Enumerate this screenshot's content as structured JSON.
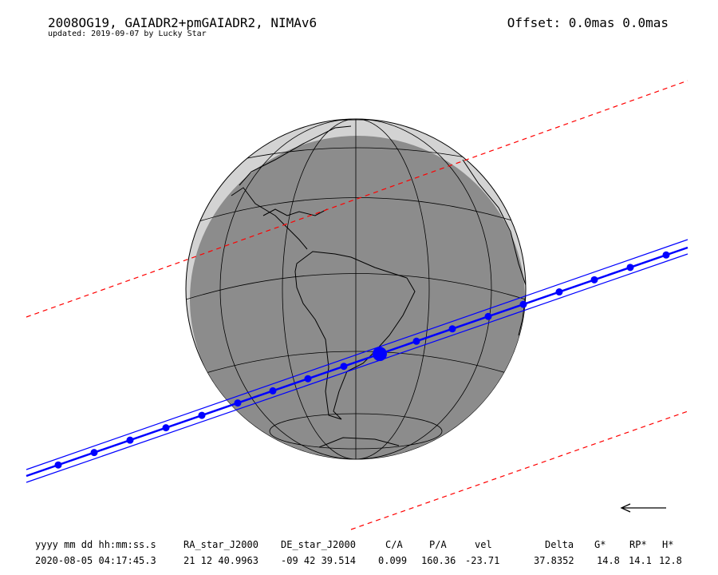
{
  "header": {
    "title": "2008OG19, GAIADR2+pmGAIADR2, NIMAv6",
    "subtitle": "updated: 2019-09-07 by Lucky Star",
    "offset": "Offset: 0.0mas 0.0mas"
  },
  "table": {
    "columns": [
      "yyyy mm dd hh:mm:ss.s",
      "RA_star_J2000",
      "DE_star_J2000",
      "C/A",
      "P/A",
      "vel",
      "Delta",
      "G*",
      "RP*",
      "H*"
    ],
    "rows": [
      [
        "2020-08-05 04:17:45.3",
        "21 12 40.9963",
        "-09 42 39.514",
        "0.099",
        "160.36",
        "-23.71",
        "37.8352",
        "14.8",
        "14.1",
        "12.8"
      ]
    ]
  }
}
